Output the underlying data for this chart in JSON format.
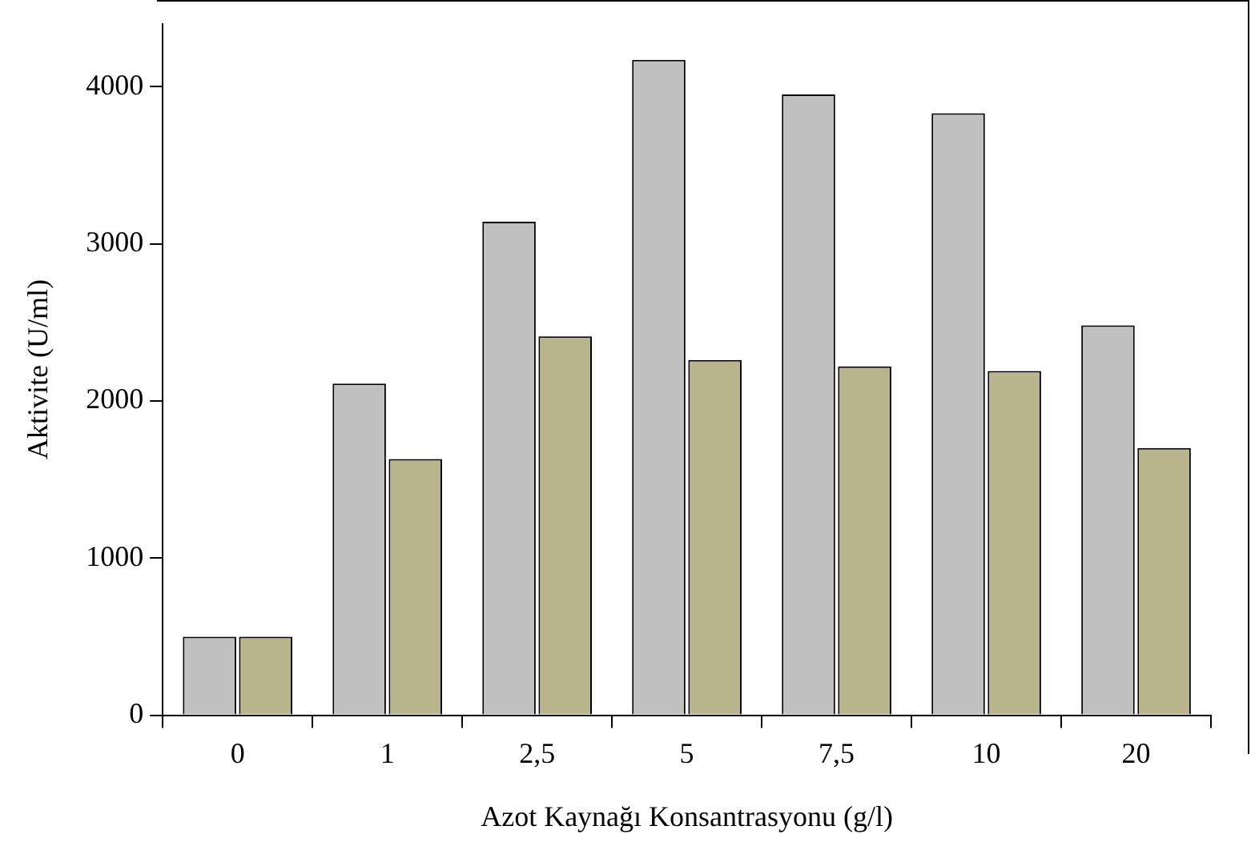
{
  "chart_data": {
    "type": "bar",
    "xlabel": "Azot Kaynağı Konsantrasyonu (g/l)",
    "ylabel": "Aktivite (U/ml)",
    "categories": [
      "0",
      "1",
      "2,5",
      "5",
      "7,5",
      "10",
      "20"
    ],
    "series": [
      {
        "color": "#c0c0c0",
        "values": [
          500,
          2110,
          3140,
          4170,
          3950,
          3830,
          2480
        ]
      },
      {
        "color": "#b8b48c",
        "values": [
          500,
          1630,
          2410,
          2260,
          2220,
          2190,
          1700
        ]
      }
    ],
    "ylim": [
      0,
      4400
    ],
    "yticks": [
      0,
      1000,
      2000,
      3000,
      4000
    ],
    "grid": false,
    "legend": false
  }
}
